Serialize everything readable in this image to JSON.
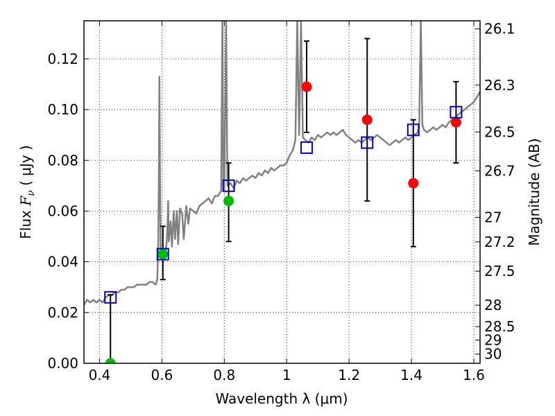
{
  "chart_data": {
    "type": "scatter",
    "xlabel": "Wavelength  λ (μm)",
    "ylabel_left_prefix": "Flux  ",
    "ylabel_left_symbol": "F",
    "ylabel_left_sub": "ν",
    "ylabel_left_suffix": "  ( μJy )",
    "ylabel_right": "Magnitude (AB)",
    "xlim": [
      0.35,
      1.62
    ],
    "ylim": [
      0.0,
      0.135
    ],
    "grid": true,
    "grid_style": "dotted",
    "x_ticks": [
      {
        "v": 0.4,
        "label": "0.4"
      },
      {
        "v": 0.6,
        "label": "0.6"
      },
      {
        "v": 0.8,
        "label": "0.8"
      },
      {
        "v": 1.0,
        "label": "1"
      },
      {
        "v": 1.2,
        "label": "1.2"
      },
      {
        "v": 1.4,
        "label": "1.4"
      },
      {
        "v": 1.6,
        "label": "1.6"
      }
    ],
    "y_ticks": [
      {
        "v": 0.0,
        "label": "0.00"
      },
      {
        "v": 0.02,
        "label": "0.02"
      },
      {
        "v": 0.04,
        "label": "0.04"
      },
      {
        "v": 0.06,
        "label": "0.06"
      },
      {
        "v": 0.08,
        "label": "0.08"
      },
      {
        "v": 0.1,
        "label": "0.10"
      },
      {
        "v": 0.12,
        "label": "0.12"
      }
    ],
    "mag_ticks": [
      {
        "mag": 26.1,
        "label": "26.1"
      },
      {
        "mag": 26.3,
        "label": "26.3"
      },
      {
        "mag": 26.5,
        "label": "26.5"
      },
      {
        "mag": 26.7,
        "label": "26.7"
      },
      {
        "mag": 27.0,
        "label": "27"
      },
      {
        "mag": 27.2,
        "label": "27.2"
      },
      {
        "mag": 27.5,
        "label": "27.5"
      },
      {
        "mag": 28.0,
        "label": "28"
      },
      {
        "mag": 28.5,
        "label": "28.5"
      },
      {
        "mag": 29.0,
        "label": "29"
      },
      {
        "mag": 30.0,
        "label": "30"
      }
    ],
    "colors": {
      "spectrum": "#808080",
      "model_square": "#0000cc",
      "detection": "#ff0000",
      "optical_detection": "#00bb00",
      "error_bar": "#000000"
    },
    "series": [
      {
        "type": "line",
        "color": "#808080",
        "points": [
          [
            0.35,
            0.023
          ],
          [
            0.36,
            0.025
          ],
          [
            0.37,
            0.024
          ],
          [
            0.38,
            0.025
          ],
          [
            0.39,
            0.024
          ],
          [
            0.4,
            0.025
          ],
          [
            0.41,
            0.024
          ],
          [
            0.42,
            0.026
          ],
          [
            0.43,
            0.027
          ],
          [
            0.44,
            0.027
          ],
          [
            0.45,
            0.028
          ],
          [
            0.46,
            0.028
          ],
          [
            0.47,
            0.029
          ],
          [
            0.48,
            0.029
          ],
          [
            0.49,
            0.03
          ],
          [
            0.5,
            0.03
          ],
          [
            0.51,
            0.03
          ],
          [
            0.52,
            0.031
          ],
          [
            0.53,
            0.031
          ],
          [
            0.54,
            0.031
          ],
          [
            0.55,
            0.031
          ],
          [
            0.56,
            0.032
          ],
          [
            0.57,
            0.032
          ],
          [
            0.58,
            0.031
          ],
          [
            0.585,
            0.033
          ],
          [
            0.588,
            0.045
          ],
          [
            0.59,
            0.07
          ],
          [
            0.592,
            0.113
          ],
          [
            0.594,
            0.07
          ],
          [
            0.596,
            0.045
          ],
          [
            0.6,
            0.041
          ],
          [
            0.605,
            0.044
          ],
          [
            0.61,
            0.043
          ],
          [
            0.615,
            0.047
          ],
          [
            0.618,
            0.055
          ],
          [
            0.62,
            0.064
          ],
          [
            0.622,
            0.048
          ],
          [
            0.628,
            0.056
          ],
          [
            0.632,
            0.046
          ],
          [
            0.638,
            0.06
          ],
          [
            0.642,
            0.049
          ],
          [
            0.648,
            0.06
          ],
          [
            0.652,
            0.047
          ],
          [
            0.658,
            0.061
          ],
          [
            0.665,
            0.059
          ],
          [
            0.67,
            0.049
          ],
          [
            0.678,
            0.062
          ],
          [
            0.685,
            0.055
          ],
          [
            0.69,
            0.061
          ],
          [
            0.7,
            0.06
          ],
          [
            0.71,
            0.059
          ],
          [
            0.72,
            0.062
          ],
          [
            0.73,
            0.063
          ],
          [
            0.74,
            0.064
          ],
          [
            0.75,
            0.065
          ],
          [
            0.76,
            0.063
          ],
          [
            0.77,
            0.066
          ],
          [
            0.78,
            0.066
          ],
          [
            0.79,
            0.068
          ],
          [
            0.794,
            0.135
          ],
          [
            0.797,
            0.07
          ],
          [
            0.8,
            0.068
          ],
          [
            0.806,
            0.135
          ],
          [
            0.81,
            0.07
          ],
          [
            0.82,
            0.071
          ],
          [
            0.83,
            0.069
          ],
          [
            0.84,
            0.072
          ],
          [
            0.85,
            0.071
          ],
          [
            0.86,
            0.073
          ],
          [
            0.87,
            0.072
          ],
          [
            0.88,
            0.073
          ],
          [
            0.89,
            0.074
          ],
          [
            0.9,
            0.073
          ],
          [
            0.91,
            0.075
          ],
          [
            0.92,
            0.074
          ],
          [
            0.93,
            0.076
          ],
          [
            0.94,
            0.075
          ],
          [
            0.95,
            0.077
          ],
          [
            0.96,
            0.076
          ],
          [
            0.97,
            0.077
          ],
          [
            0.98,
            0.078
          ],
          [
            0.99,
            0.078
          ],
          [
            1.0,
            0.079
          ],
          [
            1.01,
            0.082
          ],
          [
            1.02,
            0.084
          ],
          [
            1.028,
            0.088
          ],
          [
            1.034,
            0.135
          ],
          [
            1.04,
            0.09
          ],
          [
            1.046,
            0.135
          ],
          [
            1.052,
            0.089
          ],
          [
            1.06,
            0.088
          ],
          [
            1.07,
            0.087
          ],
          [
            1.08,
            0.089
          ],
          [
            1.09,
            0.088
          ],
          [
            1.1,
            0.09
          ],
          [
            1.11,
            0.089
          ],
          [
            1.12,
            0.09
          ],
          [
            1.13,
            0.091
          ],
          [
            1.14,
            0.09
          ],
          [
            1.15,
            0.091
          ],
          [
            1.16,
            0.09
          ],
          [
            1.17,
            0.091
          ],
          [
            1.18,
            0.092
          ],
          [
            1.19,
            0.09
          ],
          [
            1.2,
            0.089
          ],
          [
            1.21,
            0.088
          ],
          [
            1.22,
            0.087
          ],
          [
            1.23,
            0.088
          ],
          [
            1.24,
            0.087
          ],
          [
            1.25,
            0.088
          ],
          [
            1.26,
            0.089
          ],
          [
            1.27,
            0.088
          ],
          [
            1.28,
            0.089
          ],
          [
            1.29,
            0.09
          ],
          [
            1.3,
            0.089
          ],
          [
            1.31,
            0.088
          ],
          [
            1.32,
            0.087
          ],
          [
            1.33,
            0.086
          ],
          [
            1.34,
            0.087
          ],
          [
            1.35,
            0.088
          ],
          [
            1.36,
            0.087
          ],
          [
            1.37,
            0.088
          ],
          [
            1.38,
            0.089
          ],
          [
            1.39,
            0.088
          ],
          [
            1.4,
            0.089
          ],
          [
            1.41,
            0.09
          ],
          [
            1.42,
            0.091
          ],
          [
            1.425,
            0.095
          ],
          [
            1.43,
            0.135
          ],
          [
            1.435,
            0.094
          ],
          [
            1.44,
            0.092
          ],
          [
            1.45,
            0.091
          ],
          [
            1.46,
            0.092
          ],
          [
            1.47,
            0.093
          ],
          [
            1.48,
            0.092
          ],
          [
            1.49,
            0.093
          ],
          [
            1.5,
            0.094
          ],
          [
            1.51,
            0.093
          ],
          [
            1.52,
            0.095
          ],
          [
            1.53,
            0.096
          ],
          [
            1.54,
            0.097
          ],
          [
            1.55,
            0.098
          ],
          [
            1.56,
            0.099
          ],
          [
            1.57,
            0.1
          ],
          [
            1.58,
            0.101
          ],
          [
            1.59,
            0.102
          ],
          [
            1.6,
            0.103
          ],
          [
            1.61,
            0.105
          ],
          [
            1.62,
            0.107
          ]
        ]
      },
      {
        "type": "marker",
        "marker": "open-square",
        "color": "#0000cc",
        "points": [
          [
            0.435,
            0.026
          ],
          [
            0.603,
            0.043
          ],
          [
            0.814,
            0.07
          ],
          [
            1.064,
            0.085
          ],
          [
            1.258,
            0.087
          ],
          [
            1.406,
            0.092
          ],
          [
            1.543,
            0.099
          ]
        ]
      },
      {
        "type": "errorbar",
        "marker": "filled-circle",
        "points": [
          {
            "x": 0.435,
            "y": 0.0,
            "lo": 0.0,
            "hi": 0.027,
            "color": "#00bb00"
          },
          {
            "x": 0.603,
            "y": 0.043,
            "lo": 0.033,
            "hi": 0.054,
            "color": "#00bb00"
          },
          {
            "x": 0.814,
            "y": 0.064,
            "lo": 0.048,
            "hi": 0.079,
            "color": "#00bb00"
          },
          {
            "x": 1.064,
            "y": 0.109,
            "lo": 0.091,
            "hi": 0.127,
            "color": "#ff0000"
          },
          {
            "x": 1.258,
            "y": 0.096,
            "lo": 0.064,
            "hi": 0.128,
            "color": "#ff0000"
          },
          {
            "x": 1.406,
            "y": 0.071,
            "lo": 0.046,
            "hi": 0.096,
            "color": "#ff0000"
          },
          {
            "x": 1.543,
            "y": 0.095,
            "lo": 0.079,
            "hi": 0.111,
            "color": "#ff0000"
          }
        ]
      }
    ]
  }
}
